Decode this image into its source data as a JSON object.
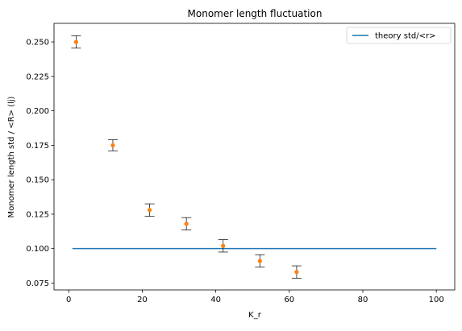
{
  "chart_data": {
    "type": "scatter",
    "title": "Monomer length fluctuation",
    "xlabel": "K_r",
    "ylabel": "Monomer length std / <R> (lj)",
    "xlim": [
      -4,
      105
    ],
    "ylim": [
      0.07,
      0.2635
    ],
    "x_ticks": [
      0,
      20,
      40,
      60,
      80,
      100
    ],
    "x_tick_labels": [
      "0",
      "20",
      "40",
      "60",
      "80",
      "100"
    ],
    "y_ticks": [
      0.075,
      0.1,
      0.125,
      0.15,
      0.175,
      0.2,
      0.225,
      0.25
    ],
    "y_tick_labels": [
      "0.075",
      "0.100",
      "0.125",
      "0.150",
      "0.175",
      "0.200",
      "0.225",
      "0.250"
    ],
    "grid": false,
    "legend_position": "top-right",
    "series": [
      {
        "name": "theory std/<r>",
        "kind": "line",
        "color": "#1f77b4",
        "x": [
          1,
          100
        ],
        "y": [
          0.1,
          0.1
        ]
      },
      {
        "kind": "errorbar",
        "color": "#ff7f0e",
        "errorbar_color": "#000000",
        "x": [
          2,
          12,
          22,
          32,
          42,
          52,
          62
        ],
        "y": [
          0.25,
          0.175,
          0.128,
          0.118,
          0.102,
          0.091,
          0.083
        ],
        "yerr": [
          0.0045,
          0.004,
          0.0045,
          0.0045,
          0.0045,
          0.0045,
          0.0045
        ]
      }
    ]
  }
}
